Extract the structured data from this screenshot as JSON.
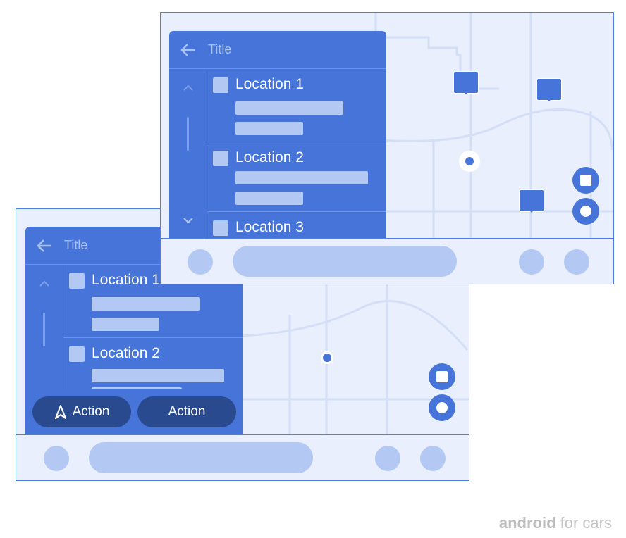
{
  "colors": {
    "panel": "#4674d9",
    "background": "#e9effc",
    "accent_light": "#b3c9f4",
    "action_button": "#2a4a8f",
    "border": "#4d7fe0"
  },
  "back_screen": {
    "title": "Title",
    "items": [
      {
        "label": "Location 1"
      },
      {
        "label": "Location 2"
      }
    ],
    "actions": [
      {
        "label": "Action",
        "icon": "navigation-arrow-icon"
      },
      {
        "label": "Action"
      }
    ]
  },
  "front_screen": {
    "title": "Title",
    "items": [
      {
        "label": "Location 1"
      },
      {
        "label": "Location 2"
      },
      {
        "label": "Location 3"
      }
    ]
  },
  "brand": {
    "bold": "android",
    "rest": " for cars"
  }
}
